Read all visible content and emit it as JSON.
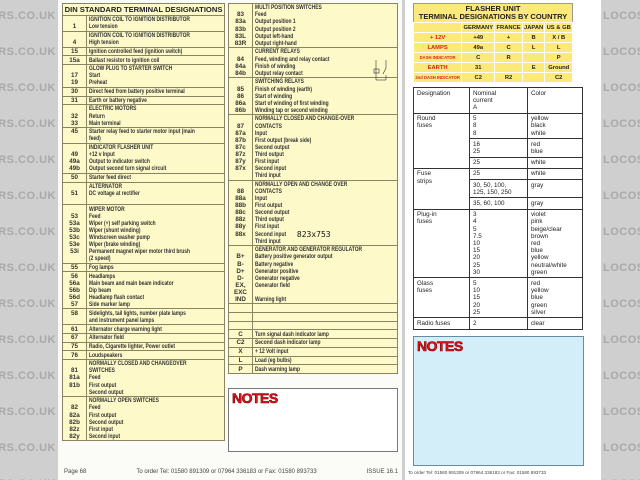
{
  "watermark": "LOCOSTBUILDERS.CO.UK",
  "din_title": "DIN STANDARD TERMINAL DESIGNATIONS",
  "din_left": [
    [
      [
        "",
        "IGNITION COIL TO IGNITION DISTRIBUTOR"
      ],
      [
        "1",
        "Low tension"
      ]
    ],
    [
      [
        "",
        "IGNITION COIL TO IGNITION DISTRIBUTOR"
      ],
      [
        "4",
        "High tension"
      ]
    ],
    [
      [
        "15",
        "Ignition controlled feed (ignition switch)"
      ]
    ],
    [
      [
        "15a",
        "Ballast resistor to ignition coil"
      ]
    ],
    [
      [
        "",
        "GLOW PLUG TO STARTER SWITCH"
      ],
      [
        "17",
        "Start"
      ],
      [
        "19",
        "Preheat"
      ]
    ],
    [
      [
        "30",
        "Direct feed from battery positive terminal"
      ]
    ],
    [
      [
        "31",
        "Earth or battery negative"
      ]
    ],
    [
      [
        "",
        "ELECTRIC MOTORS"
      ],
      [
        "32",
        "Return"
      ],
      [
        "33",
        "Main terminal"
      ]
    ],
    [
      [
        "45",
        "Starter relay feed to starter motor input (main"
      ],
      [
        "",
        "feed)"
      ]
    ],
    [
      [
        "",
        "INDICATOR FLASHER UNIT"
      ],
      [
        "49",
        "+12 v Input"
      ],
      [
        "49a",
        "Output to indicator switch"
      ],
      [
        "49b",
        "Output second turn signal circuit"
      ]
    ],
    [
      [
        "50",
        "Starter feed direct"
      ]
    ],
    [
      [
        "",
        "ALTERNATOR"
      ],
      [
        "51",
        "DC voltage at rectifier"
      ],
      [
        "",
        ""
      ]
    ],
    [
      [
        "",
        "WIPER MOTOR"
      ],
      [
        "53",
        "Feed"
      ],
      [
        "53a",
        "Wiper (+) self parking switch"
      ],
      [
        "53b",
        "Wiper (shunt winding)"
      ],
      [
        "53c",
        "Windscreen washer pump"
      ],
      [
        "53e",
        "Wiper (brake winding)"
      ],
      [
        "53i",
        "Permanent magnet wiper motor third brush"
      ],
      [
        "",
        "(2 speed)"
      ]
    ],
    [
      [
        "55",
        "Fog lamps"
      ]
    ],
    [
      [
        "56",
        "Headlamps"
      ],
      [
        "56a",
        "Main beam and main beam indicator"
      ],
      [
        "56b",
        "Dip beam"
      ],
      [
        "56d",
        "Headlamp flash contact"
      ],
      [
        "57",
        "Side marker lamp"
      ]
    ],
    [
      [
        "58",
        "Sidelights, tail lights, number plate lamps"
      ],
      [
        "",
        "and instrument panel lamps"
      ]
    ],
    [
      [
        "61",
        "Alternator charge warning light"
      ]
    ],
    [
      [
        "67",
        "Alternator field"
      ]
    ],
    [
      [
        "75",
        "Radio, Cigarette lighter, Power outlet"
      ]
    ],
    [
      [
        "76",
        "Loudspeakers"
      ]
    ],
    [
      [
        "",
        "NORMALLY CLOSED AND CHANGEOVER"
      ],
      [
        "81",
        "SWITCHES"
      ],
      [
        "81a",
        "Feed"
      ],
      [
        "81b",
        "First output"
      ],
      [
        "",
        "Second output"
      ]
    ],
    [
      [
        "",
        "NORMALLY OPEN SWITCHES"
      ],
      [
        "82",
        "Feed"
      ],
      [
        "82a",
        "First output"
      ],
      [
        "82b",
        "Second output"
      ],
      [
        "82z",
        "First input"
      ],
      [
        "82y",
        "Second input"
      ]
    ]
  ],
  "din_right": [
    [
      [
        "",
        "MULTI POSITION SWITCHES"
      ],
      [
        "83",
        "Feed"
      ],
      [
        "83a",
        "Output position 1"
      ],
      [
        "83b",
        "Output position 2"
      ],
      [
        "83L",
        "Output left-hand"
      ],
      [
        "83R",
        "Output right-hand"
      ]
    ],
    [
      [
        "",
        "CURRENT RELAYS"
      ],
      [
        "84",
        "Feed, winding and relay contact"
      ],
      [
        "84a",
        "Finish of winding"
      ],
      [
        "84b",
        "Output relay contact"
      ]
    ],
    [
      [
        "",
        "SWITCHING RELAYS"
      ],
      [
        "85",
        "Finish of winding (earth)"
      ],
      [
        "86",
        "Start of winding"
      ],
      [
        "86a",
        "Start of winding of first winding"
      ],
      [
        "86b",
        "Winding tap or second winding"
      ]
    ],
    [
      [
        "",
        "NORMALLY CLOSED AND CHANGE-OVER"
      ],
      [
        "87",
        "CONTACTS"
      ],
      [
        "87a",
        "Input"
      ],
      [
        "87b",
        "First output (break side)"
      ],
      [
        "87c",
        "Second output"
      ],
      [
        "87z",
        "Third output"
      ],
      [
        "87y",
        "First input"
      ],
      [
        "87x",
        "Second input"
      ],
      [
        "",
        "Third input"
      ]
    ],
    [
      [
        "",
        "NORMALLY OPEN AND CHANGE OVER"
      ],
      [
        "88",
        "CONTACTS"
      ],
      [
        "88a",
        "Input"
      ],
      [
        "88b",
        "First output"
      ],
      [
        "88c",
        "Second output"
      ],
      [
        "88z",
        "Third output"
      ],
      [
        "88y",
        "First input"
      ],
      [
        "88x",
        "Second input"
      ],
      [
        "",
        "Third input"
      ]
    ],
    [
      [
        "",
        "GENERATOR AND GENERATOR REGULATOR"
      ],
      [
        "B+",
        "Battery positive generator output"
      ],
      [
        "B-",
        "Battery negative"
      ],
      [
        "D+",
        "Generator positive"
      ],
      [
        "D-",
        "Generator negative"
      ],
      [
        "EX,",
        "Generator field"
      ],
      [
        "EXC",
        ""
      ],
      [
        "IND",
        "Warning light"
      ]
    ],
    [
      [
        "",
        ""
      ]
    ],
    [
      [
        "",
        ""
      ]
    ],
    [
      [
        "",
        ""
      ]
    ],
    [
      [
        "C",
        "Turn signal dash indicator lamp"
      ]
    ],
    [
      [
        "C2",
        "Second dash indicator lamp"
      ]
    ],
    [
      [
        "X",
        "+ 12 Volt input"
      ]
    ],
    [
      [
        "L",
        "Load (eg bulbs)"
      ]
    ],
    [
      [
        "P",
        "Dash warning lamp"
      ]
    ]
  ],
  "image_size_label": "823x753",
  "notes_label": "NOTES",
  "flasher": {
    "title1": "FLASHER UNIT",
    "title2": "TERMINAL DESIGNATIONS BY COUNTRY",
    "columns": [
      "",
      "GERMANY",
      "FRANCE",
      "JAPAN",
      "US & GB"
    ],
    "rows": [
      {
        "label": "+ 12V",
        "small": false,
        "values": [
          "+49",
          "+",
          "B",
          "X / B"
        ]
      },
      {
        "label": "LAMPS",
        "small": false,
        "values": [
          "49a",
          "C",
          "L",
          "L"
        ]
      },
      {
        "label": "DASH INDICATOR",
        "small": true,
        "values": [
          "C",
          "R",
          "",
          "P"
        ]
      },
      {
        "label": "EARTH",
        "small": false,
        "values": [
          "31",
          "",
          "E",
          "Ground"
        ]
      },
      {
        "label": "2nd DASH INDICATOR",
        "small": true,
        "values": [
          "C2",
          "R2",
          "",
          "C2"
        ]
      }
    ]
  },
  "fuses": {
    "headers": [
      "Designation",
      "Nominal\ncurrent\nA",
      "Color"
    ],
    "groups": [
      {
        "designation": "Round\nfuses",
        "entries": [
          {
            "current": "5\n8\n8",
            "color": "yellow\nblack\nwhite"
          },
          {
            "current": "16\n25",
            "color": "red\nblue"
          },
          {
            "current": "25",
            "color": "white"
          }
        ]
      },
      {
        "designation": "Fuse\nstrips",
        "entries": [
          {
            "current": "25",
            "color": "white"
          },
          {
            "current": "30, 50, 100,\n125, 150, 250",
            "color": "gray"
          },
          {
            "current": "35, 60, 100",
            "color": "gray"
          }
        ]
      },
      {
        "designation": "Plug-in\nfuses",
        "entries": [
          {
            "current": "3\n4\n5\n7.5\n10\n15\n20\n25\n30",
            "color": "violet\npink\nbeige/clear\nbrown\nred\nblue\nyellow\nneutral/white\ngreen"
          }
        ]
      },
      {
        "designation": "Glass\nfuses",
        "entries": [
          {
            "current": "5\n10\n15\n20\n25",
            "color": "red\nyellow\nblue\ngreen\nsilver"
          }
        ]
      },
      {
        "designation": "Radio fuses",
        "entries": [
          {
            "current": "2",
            "color": "clear"
          }
        ]
      }
    ]
  },
  "footer_left": {
    "page": "Page 68",
    "order": "To order Tel:  01580 891309   or   07964 336183   or   Fax: 01580 893733",
    "issue": "ISSUE 16.1"
  },
  "footer_right": "To order Tel:  01580 891309  or  07964 336183  or  Fax: 01580 893733"
}
